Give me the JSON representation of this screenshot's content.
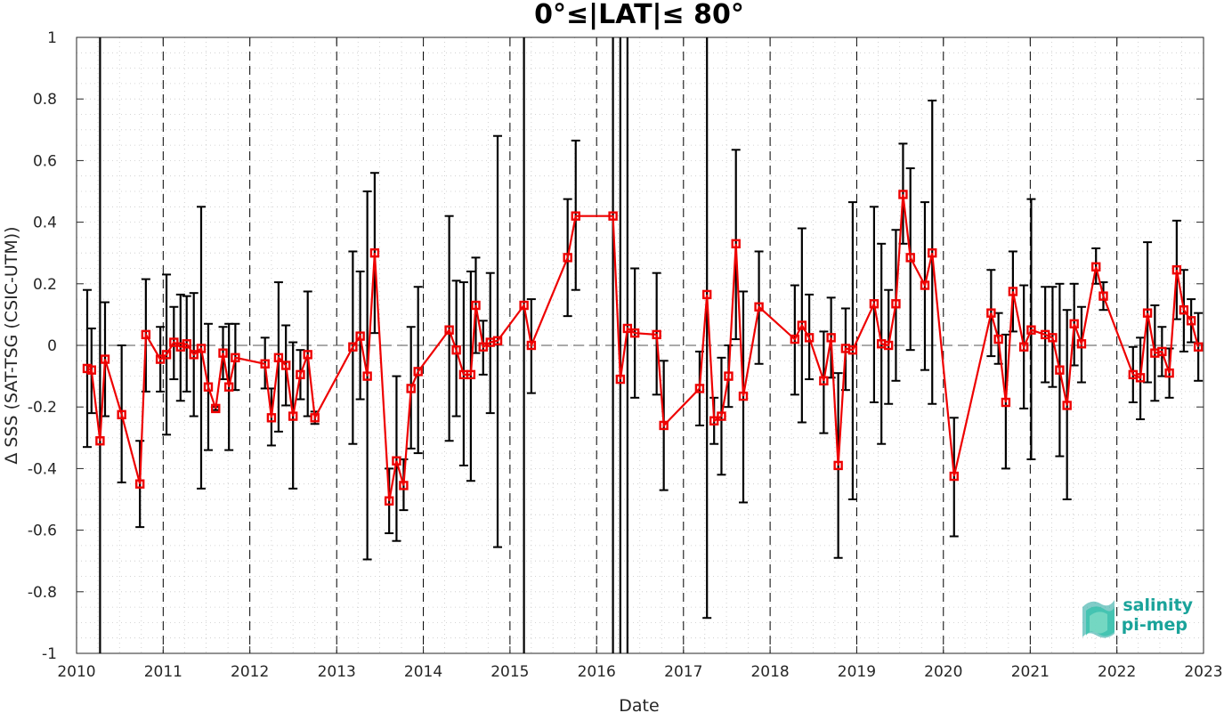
{
  "chart_data": {
    "type": "line",
    "title": "0°≤|LAT|≤ 80°",
    "xlabel": "Date",
    "ylabel": "Δ SSS (SAT-TSG (CSIC-UTM))",
    "xlim": [
      "2010-01-01",
      "2023-01-01"
    ],
    "ylim": [
      -1,
      1
    ],
    "x_ticks": [
      "2010",
      "2011",
      "2012",
      "2013",
      "2014",
      "2015",
      "2016",
      "2017",
      "2018",
      "2019",
      "2020",
      "2021",
      "2022",
      "2023"
    ],
    "y_ticks": [
      "-1",
      "-0.8",
      "-0.6",
      "-0.4",
      "-0.2",
      "0",
      "0.2",
      "0.4",
      "0.6",
      "0.8",
      "1"
    ],
    "grid": "minor dotted",
    "zero_line": true,
    "year_boundaries_dashed": true,
    "colors": {
      "series": "#ee0000",
      "errorbar": "#000000",
      "grid": "#c8c8c8",
      "logo": "#1aa39a"
    },
    "series": [
      {
        "marker": "square",
        "points": [
          {
            "x": "2010-02-15",
            "y": -0.075,
            "lo": -0.33,
            "hi": 0.18
          },
          {
            "x": "2010-03-05",
            "y": -0.08,
            "lo": -0.22,
            "hi": 0.055
          },
          {
            "x": "2010-04-10",
            "y": -0.31,
            "lo": -1.5,
            "hi": 1.5
          },
          {
            "x": "2010-05-01",
            "y": -0.045,
            "lo": -0.23,
            "hi": 0.14
          },
          {
            "x": "2010-07-10",
            "y": -0.225,
            "lo": -0.445,
            "hi": 0.0
          },
          {
            "x": "2010-09-25",
            "y": -0.45,
            "lo": -0.59,
            "hi": -0.31
          },
          {
            "x": "2010-10-20",
            "y": 0.035,
            "lo": -0.15,
            "hi": 0.215
          },
          {
            "x": "2010-12-20",
            "y": -0.045,
            "lo": -0.15,
            "hi": 0.06
          },
          {
            "x": "2011-01-15",
            "y": -0.03,
            "lo": -0.29,
            "hi": 0.23
          },
          {
            "x": "2011-02-15",
            "y": 0.01,
            "lo": -0.11,
            "hi": 0.125
          },
          {
            "x": "2011-03-15",
            "y": -0.005,
            "lo": -0.18,
            "hi": 0.165
          },
          {
            "x": "2011-04-10",
            "y": 0.005,
            "lo": -0.15,
            "hi": 0.16
          },
          {
            "x": "2011-05-10",
            "y": -0.03,
            "lo": -0.23,
            "hi": 0.17
          },
          {
            "x": "2011-06-10",
            "y": -0.01,
            "lo": -0.465,
            "hi": 0.45
          },
          {
            "x": "2011-07-10",
            "y": -0.135,
            "lo": -0.34,
            "hi": 0.07
          },
          {
            "x": "2011-08-10",
            "y": -0.205,
            "lo": -0.21,
            "hi": -0.2
          },
          {
            "x": "2011-09-10",
            "y": -0.025,
            "lo": -0.11,
            "hi": 0.06
          },
          {
            "x": "2011-10-05",
            "y": -0.135,
            "lo": -0.34,
            "hi": 0.07
          },
          {
            "x": "2011-11-01",
            "y": -0.04,
            "lo": -0.145,
            "hi": 0.07
          },
          {
            "x": "2012-03-05",
            "y": -0.06,
            "lo": -0.14,
            "hi": 0.025
          },
          {
            "x": "2012-04-01",
            "y": -0.235,
            "lo": -0.325,
            "hi": -0.14
          },
          {
            "x": "2012-05-01",
            "y": -0.04,
            "lo": -0.28,
            "hi": 0.205
          },
          {
            "x": "2012-06-01",
            "y": -0.065,
            "lo": -0.195,
            "hi": 0.065
          },
          {
            "x": "2012-07-01",
            "y": -0.23,
            "lo": -0.465,
            "hi": 0.01
          },
          {
            "x": "2012-08-01",
            "y": -0.095,
            "lo": -0.175,
            "hi": -0.015
          },
          {
            "x": "2012-09-01",
            "y": -0.03,
            "lo": -0.23,
            "hi": 0.175
          },
          {
            "x": "2012-10-01",
            "y": -0.235,
            "lo": -0.255,
            "hi": -0.215
          },
          {
            "x": "2013-03-10",
            "y": -0.005,
            "lo": -0.32,
            "hi": 0.305
          },
          {
            "x": "2013-04-10",
            "y": 0.03,
            "lo": -0.175,
            "hi": 0.24
          },
          {
            "x": "2013-05-10",
            "y": -0.1,
            "lo": -0.695,
            "hi": 0.5
          },
          {
            "x": "2013-06-10",
            "y": 0.3,
            "lo": 0.04,
            "hi": 0.56
          },
          {
            "x": "2013-08-10",
            "y": -0.505,
            "lo": -0.61,
            "hi": -0.4
          },
          {
            "x": "2013-09-10",
            "y": -0.375,
            "lo": -0.635,
            "hi": -0.1
          },
          {
            "x": "2013-10-10",
            "y": -0.455,
            "lo": -0.535,
            "hi": -0.37
          },
          {
            "x": "2013-11-10",
            "y": -0.14,
            "lo": -0.335,
            "hi": 0.06
          },
          {
            "x": "2013-12-10",
            "y": -0.085,
            "lo": -0.35,
            "hi": 0.19
          },
          {
            "x": "2014-04-20",
            "y": 0.05,
            "lo": -0.31,
            "hi": 0.42
          },
          {
            "x": "2014-05-20",
            "y": -0.015,
            "lo": -0.23,
            "hi": 0.21
          },
          {
            "x": "2014-06-20",
            "y": -0.095,
            "lo": -0.39,
            "hi": 0.205
          },
          {
            "x": "2014-07-20",
            "y": -0.095,
            "lo": -0.44,
            "hi": 0.24
          },
          {
            "x": "2014-08-10",
            "y": 0.13,
            "lo": -0.025,
            "hi": 0.285
          },
          {
            "x": "2014-09-10",
            "y": -0.005,
            "lo": -0.095,
            "hi": 0.08
          },
          {
            "x": "2014-10-10",
            "y": 0.01,
            "lo": -0.22,
            "hi": 0.235
          },
          {
            "x": "2014-11-10",
            "y": 0.015,
            "lo": -0.655,
            "hi": 0.68
          },
          {
            "x": "2015-03-01",
            "y": 0.13,
            "lo": -1.5,
            "hi": 1.5
          },
          {
            "x": "2015-04-01",
            "y": 0.0,
            "lo": -0.155,
            "hi": 0.15
          },
          {
            "x": "2015-09-01",
            "y": 0.285,
            "lo": 0.095,
            "hi": 0.475
          },
          {
            "x": "2015-10-05",
            "y": 0.42,
            "lo": 0.18,
            "hi": 0.665
          },
          {
            "x": "2016-03-10",
            "y": 0.42,
            "lo": -1.5,
            "hi": 1.5
          },
          {
            "x": "2016-04-10",
            "y": -0.11,
            "lo": -1.5,
            "hi": 1.5
          },
          {
            "x": "2016-05-10",
            "y": 0.055,
            "lo": -1.5,
            "hi": 1.5
          },
          {
            "x": "2016-06-10",
            "y": 0.04,
            "lo": -0.17,
            "hi": 0.25
          },
          {
            "x": "2016-09-10",
            "y": 0.035,
            "lo": -0.16,
            "hi": 0.235
          },
          {
            "x": "2016-10-10",
            "y": -0.26,
            "lo": -0.47,
            "hi": -0.05
          },
          {
            "x": "2017-03-10",
            "y": -0.14,
            "lo": -0.26,
            "hi": -0.02
          },
          {
            "x": "2017-04-10",
            "y": 0.165,
            "lo": -0.885,
            "hi": 1.5
          },
          {
            "x": "2017-05-10",
            "y": -0.245,
            "lo": -0.32,
            "hi": -0.17
          },
          {
            "x": "2017-06-10",
            "y": -0.23,
            "lo": -0.42,
            "hi": -0.04
          },
          {
            "x": "2017-07-10",
            "y": -0.1,
            "lo": -0.2,
            "hi": 0.0
          },
          {
            "x": "2017-08-10",
            "y": 0.33,
            "lo": 0.02,
            "hi": 0.635
          },
          {
            "x": "2017-09-10",
            "y": -0.165,
            "lo": -0.51,
            "hi": 0.175
          },
          {
            "x": "2017-11-15",
            "y": 0.125,
            "lo": -0.06,
            "hi": 0.305
          },
          {
            "x": "2018-04-15",
            "y": 0.02,
            "lo": -0.16,
            "hi": 0.195
          },
          {
            "x": "2018-05-15",
            "y": 0.065,
            "lo": -0.25,
            "hi": 0.38
          },
          {
            "x": "2018-06-15",
            "y": 0.025,
            "lo": -0.11,
            "hi": 0.165
          },
          {
            "x": "2018-08-15",
            "y": -0.115,
            "lo": -0.285,
            "hi": 0.045
          },
          {
            "x": "2018-09-15",
            "y": 0.025,
            "lo": -0.105,
            "hi": 0.155
          },
          {
            "x": "2018-10-15",
            "y": -0.39,
            "lo": -0.69,
            "hi": -0.09
          },
          {
            "x": "2018-11-15",
            "y": -0.01,
            "lo": -0.145,
            "hi": 0.12
          },
          {
            "x": "2018-12-15",
            "y": -0.015,
            "lo": -0.5,
            "hi": 0.465
          },
          {
            "x": "2019-03-15",
            "y": 0.135,
            "lo": -0.185,
            "hi": 0.45
          },
          {
            "x": "2019-04-15",
            "y": 0.005,
            "lo": -0.32,
            "hi": 0.33
          },
          {
            "x": "2019-05-15",
            "y": 0.0,
            "lo": -0.19,
            "hi": 0.18
          },
          {
            "x": "2019-06-15",
            "y": 0.135,
            "lo": -0.115,
            "hi": 0.375
          },
          {
            "x": "2019-07-15",
            "y": 0.49,
            "lo": 0.33,
            "hi": 0.655
          },
          {
            "x": "2019-08-15",
            "y": 0.285,
            "lo": -0.015,
            "hi": 0.575
          },
          {
            "x": "2019-10-15",
            "y": 0.195,
            "lo": -0.08,
            "hi": 0.465
          },
          {
            "x": "2019-11-15",
            "y": 0.3,
            "lo": -0.19,
            "hi": 0.795
          },
          {
            "x": "2020-02-15",
            "y": -0.425,
            "lo": -0.62,
            "hi": -0.235
          },
          {
            "x": "2020-07-20",
            "y": 0.105,
            "lo": -0.035,
            "hi": 0.245
          },
          {
            "x": "2020-08-20",
            "y": 0.02,
            "lo": -0.06,
            "hi": 0.105
          },
          {
            "x": "2020-09-20",
            "y": -0.185,
            "lo": -0.4,
            "hi": 0.035
          },
          {
            "x": "2020-10-20",
            "y": 0.175,
            "lo": 0.045,
            "hi": 0.305
          },
          {
            "x": "2020-12-05",
            "y": -0.005,
            "lo": -0.205,
            "hi": 0.195
          },
          {
            "x": "2021-01-05",
            "y": 0.05,
            "lo": -0.37,
            "hi": 0.475
          },
          {
            "x": "2021-03-05",
            "y": 0.035,
            "lo": -0.12,
            "hi": 0.19
          },
          {
            "x": "2021-04-05",
            "y": 0.025,
            "lo": -0.135,
            "hi": 0.19
          },
          {
            "x": "2021-05-05",
            "y": -0.08,
            "lo": -0.36,
            "hi": 0.2
          },
          {
            "x": "2021-06-05",
            "y": -0.195,
            "lo": -0.5,
            "hi": 0.115
          },
          {
            "x": "2021-07-05",
            "y": 0.07,
            "lo": -0.065,
            "hi": 0.2
          },
          {
            "x": "2021-08-05",
            "y": 0.005,
            "lo": -0.12,
            "hi": 0.125
          },
          {
            "x": "2021-10-05",
            "y": 0.255,
            "lo": 0.2,
            "hi": 0.315
          },
          {
            "x": "2021-11-05",
            "y": 0.16,
            "lo": 0.115,
            "hi": 0.205
          },
          {
            "x": "2022-03-10",
            "y": -0.095,
            "lo": -0.185,
            "hi": -0.005
          },
          {
            "x": "2022-04-10",
            "y": -0.105,
            "lo": -0.24,
            "hi": 0.025
          },
          {
            "x": "2022-05-10",
            "y": 0.105,
            "lo": -0.12,
            "hi": 0.335
          },
          {
            "x": "2022-06-10",
            "y": -0.025,
            "lo": -0.18,
            "hi": 0.13
          },
          {
            "x": "2022-07-10",
            "y": -0.02,
            "lo": -0.1,
            "hi": 0.06
          },
          {
            "x": "2022-08-10",
            "y": -0.09,
            "lo": -0.17,
            "hi": -0.01
          },
          {
            "x": "2022-09-10",
            "y": 0.245,
            "lo": 0.085,
            "hi": 0.405
          },
          {
            "x": "2022-10-10",
            "y": 0.115,
            "lo": -0.02,
            "hi": 0.245
          },
          {
            "x": "2022-11-10",
            "y": 0.08,
            "lo": 0.01,
            "hi": 0.15
          },
          {
            "x": "2022-12-10",
            "y": -0.005,
            "lo": -0.115,
            "hi": 0.105
          }
        ]
      }
    ]
  },
  "logo": {
    "line1": "salinity",
    "line2": "pi-mep"
  }
}
